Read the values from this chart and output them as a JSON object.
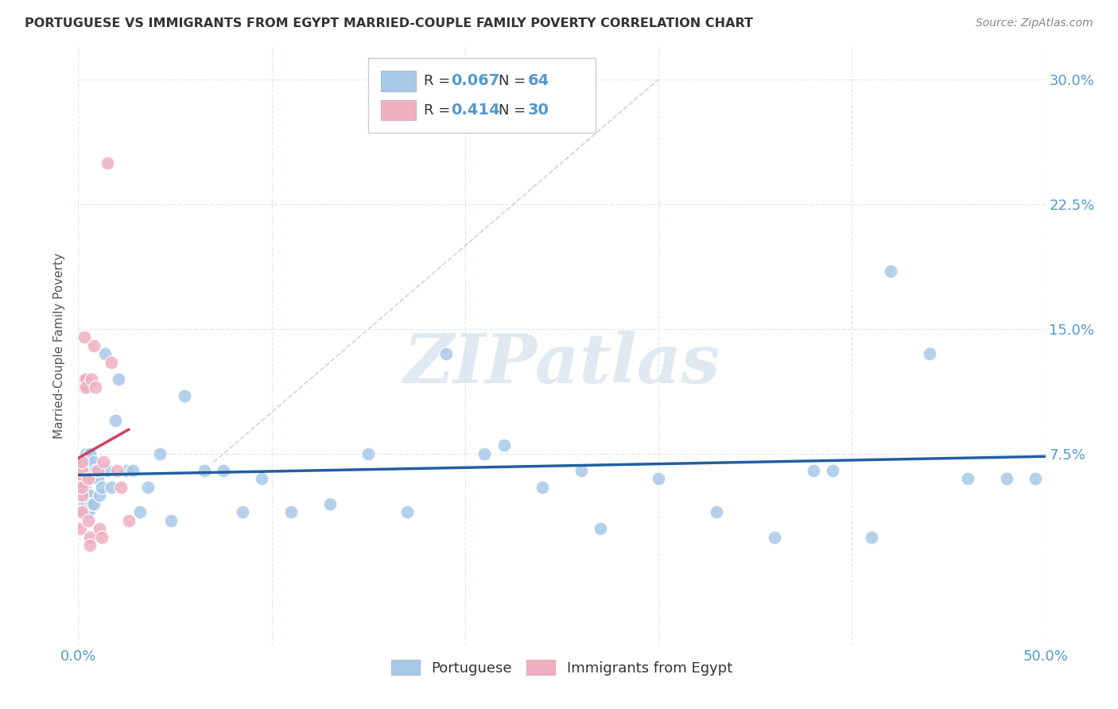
{
  "title": "PORTUGUESE VS IMMIGRANTS FROM EGYPT MARRIED-COUPLE FAMILY POVERTY CORRELATION CHART",
  "source": "Source: ZipAtlas.com",
  "ylabel": "Married-Couple Family Poverty",
  "xlim": [
    0.0,
    0.5
  ],
  "ylim": [
    -0.04,
    0.32
  ],
  "xticks": [
    0.0,
    0.1,
    0.2,
    0.3,
    0.4,
    0.5
  ],
  "xticklabels": [
    "0.0%",
    "",
    "",
    "",
    "",
    "50.0%"
  ],
  "yticks": [
    0.075,
    0.15,
    0.225,
    0.3
  ],
  "yticklabels": [
    "7.5%",
    "15.0%",
    "22.5%",
    "30.0%"
  ],
  "background_color": "#ffffff",
  "grid_color": "#dde8f0",
  "watermark": "ZIPatlas",
  "legend1_r": "0.067",
  "legend1_n": "64",
  "legend2_r": "0.414",
  "legend2_n": "30",
  "blue_color": "#a8c8e8",
  "pink_color": "#f0b0c0",
  "blue_line_color": "#2060a0",
  "pink_line_color": "#d04060",
  "diagonal_color": "#d0c0c8",
  "tick_color": "#5599cc",
  "portuguese_x": [
    0.001,
    0.001,
    0.002,
    0.002,
    0.002,
    0.003,
    0.003,
    0.003,
    0.003,
    0.004,
    0.004,
    0.004,
    0.004,
    0.005,
    0.005,
    0.005,
    0.006,
    0.006,
    0.006,
    0.007,
    0.007,
    0.008,
    0.008,
    0.009,
    0.01,
    0.011,
    0.012,
    0.014,
    0.015,
    0.017,
    0.019,
    0.021,
    0.025,
    0.028,
    0.032,
    0.036,
    0.042,
    0.048,
    0.055,
    0.065,
    0.075,
    0.085,
    0.095,
    0.11,
    0.13,
    0.15,
    0.17,
    0.19,
    0.21,
    0.24,
    0.27,
    0.3,
    0.33,
    0.36,
    0.39,
    0.42,
    0.44,
    0.46,
    0.48,
    0.495,
    0.22,
    0.26,
    0.38,
    0.41
  ],
  "portuguese_y": [
    0.06,
    0.055,
    0.065,
    0.07,
    0.06,
    0.065,
    0.07,
    0.055,
    0.045,
    0.075,
    0.06,
    0.05,
    0.04,
    0.07,
    0.06,
    0.04,
    0.075,
    0.065,
    0.05,
    0.06,
    0.045,
    0.07,
    0.045,
    0.065,
    0.06,
    0.05,
    0.055,
    0.135,
    0.065,
    0.055,
    0.095,
    0.12,
    0.065,
    0.065,
    0.04,
    0.055,
    0.075,
    0.035,
    0.11,
    0.065,
    0.065,
    0.04,
    0.06,
    0.04,
    0.045,
    0.075,
    0.04,
    0.135,
    0.075,
    0.055,
    0.03,
    0.06,
    0.04,
    0.025,
    0.065,
    0.185,
    0.135,
    0.06,
    0.06,
    0.06,
    0.08,
    0.065,
    0.065,
    0.025
  ],
  "egypt_x": [
    0.001,
    0.001,
    0.001,
    0.001,
    0.002,
    0.002,
    0.002,
    0.002,
    0.002,
    0.003,
    0.003,
    0.003,
    0.004,
    0.004,
    0.005,
    0.005,
    0.006,
    0.006,
    0.007,
    0.008,
    0.009,
    0.01,
    0.011,
    0.012,
    0.013,
    0.015,
    0.017,
    0.02,
    0.022,
    0.026
  ],
  "egypt_y": [
    0.06,
    0.04,
    0.03,
    0.055,
    0.065,
    0.07,
    0.05,
    0.04,
    0.055,
    0.145,
    0.12,
    0.115,
    0.12,
    0.115,
    0.06,
    0.035,
    0.025,
    0.02,
    0.12,
    0.14,
    0.115,
    0.065,
    0.03,
    0.025,
    0.07,
    0.25,
    0.13,
    0.065,
    0.055,
    0.035
  ]
}
